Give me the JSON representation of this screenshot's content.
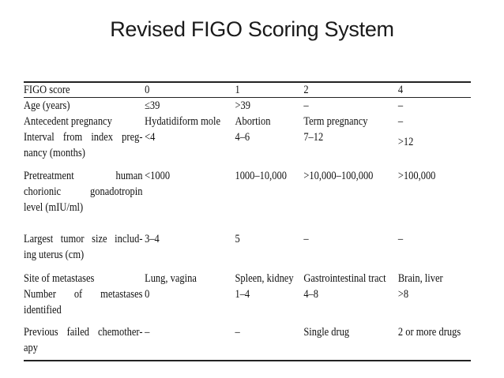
{
  "title": "Revised FIGO Scoring System",
  "table": {
    "header": [
      "FIGO score",
      "0",
      "1",
      "2",
      "4"
    ],
    "rows": [
      {
        "label_lines": [
          "Age (years)"
        ],
        "values": [
          "≤39",
          ">39",
          "–",
          "–"
        ]
      },
      {
        "label_lines": [
          "Antecedent pregnancy"
        ],
        "values": [
          "Hydatidiform mole",
          "Abortion",
          "Term pregnancy",
          "–"
        ]
      },
      {
        "label_lines": [
          "Interval from index preg-",
          "nancy (months)"
        ],
        "values": [
          "<4",
          "4–6",
          "7–12",
          ">12"
        ]
      },
      {
        "label_lines": [
          "Pretreatment human",
          "chorionic gonadotropin",
          "level (mIU/ml)"
        ],
        "values": [
          "<1000",
          "1000–10,000",
          ">10,000–100,000",
          ">100,000"
        ]
      },
      {
        "label_lines": [
          "Largest tumor size includ-",
          "ing uterus (cm)"
        ],
        "values": [
          "3–4",
          "5",
          "–",
          "–"
        ]
      },
      {
        "label_lines": [
          "Site of metastases"
        ],
        "values": [
          "Lung, vagina",
          "Spleen, kidney",
          "Gastrointestinal tract",
          "Brain, liver"
        ]
      },
      {
        "label_lines": [
          "Number of metastases",
          "identified"
        ],
        "values": [
          "0",
          "1–4",
          "4–8",
          ">8"
        ]
      },
      {
        "label_lines": [
          "Previous failed chemother-",
          "apy"
        ],
        "values": [
          "–",
          "–",
          "Single drug",
          "2 or more drugs"
        ]
      }
    ]
  }
}
